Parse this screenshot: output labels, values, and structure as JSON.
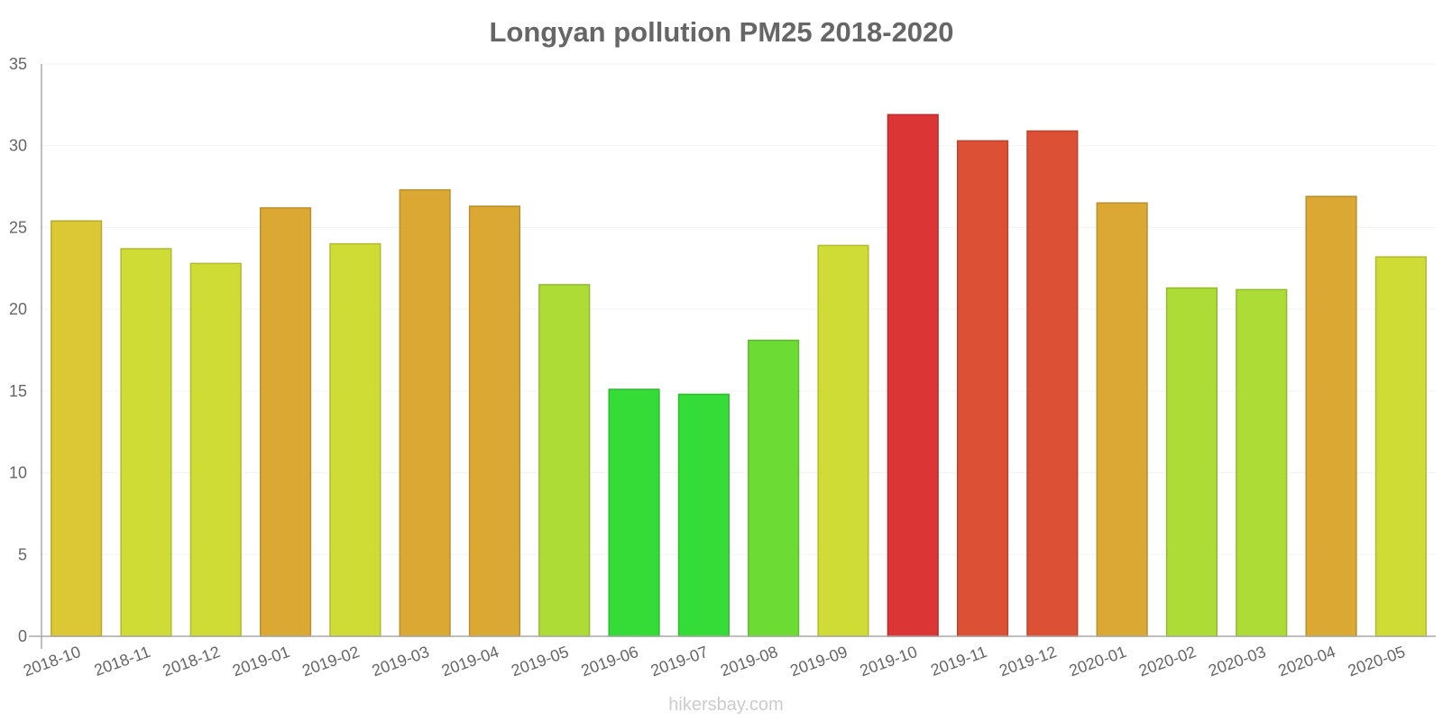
{
  "chart_data": {
    "type": "bar",
    "title": "Longyan pollution PM25 2018-2020",
    "xlabel": "",
    "ylabel": "",
    "ylim": [
      0,
      35
    ],
    "yticks": [
      0,
      5,
      10,
      15,
      20,
      25,
      30,
      35
    ],
    "grid": true,
    "categories": [
      "2018-10",
      "2018-11",
      "2018-12",
      "2019-01",
      "2019-02",
      "2019-03",
      "2019-04",
      "2019-05",
      "2019-06",
      "2019-07",
      "2019-08",
      "2019-09",
      "2019-10",
      "2019-11",
      "2019-12",
      "2020-01",
      "2020-02",
      "2020-03",
      "2020-04",
      "2020-05"
    ],
    "values": [
      25.4,
      23.7,
      22.8,
      26.2,
      24.0,
      27.3,
      26.3,
      21.5,
      15.1,
      14.8,
      18.1,
      23.9,
      31.9,
      30.3,
      30.9,
      26.5,
      21.3,
      21.2,
      26.9,
      23.2
    ],
    "colors": [
      "#dbc834",
      "#cfdc35",
      "#cfdc35",
      "#dba834",
      "#cfdc35",
      "#dba834",
      "#dba834",
      "#acdc35",
      "#35dc38",
      "#35dc38",
      "#6cdc35",
      "#cfdc35",
      "#dc3535",
      "#dc5035",
      "#dc5035",
      "#dba834",
      "#acdc35",
      "#acdc35",
      "#dba834",
      "#cfdc35"
    ]
  },
  "watermark": "hikersbay.com"
}
